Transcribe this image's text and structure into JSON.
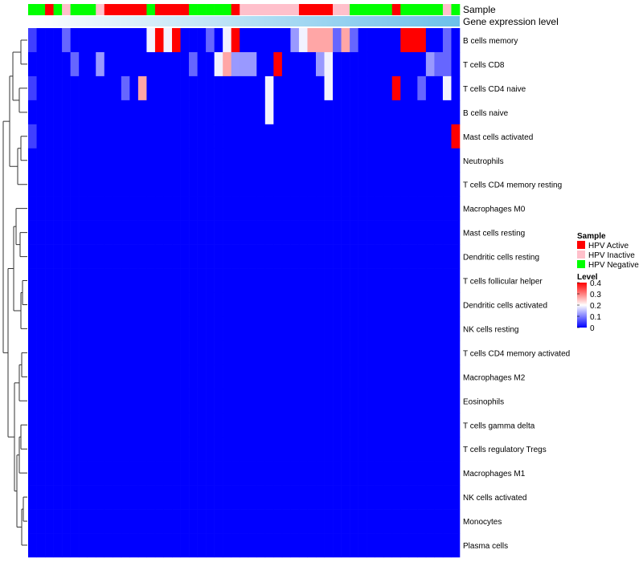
{
  "chart_data": {
    "type": "heatmap",
    "title": "",
    "colorbar": {
      "title": "Level",
      "min": 0,
      "max": 0.4,
      "ticks": [
        "0.4",
        "0.3",
        "0.2",
        "0.1",
        "0"
      ],
      "colors": [
        "#0000ff",
        "#ffffff",
        "#ff0000"
      ]
    },
    "annotation_tracks": [
      {
        "name": "Sample",
        "classes": [
          "HPV Active",
          "HPV Inactive",
          "HPV Negative"
        ],
        "colors": {
          "HPV Active": "#ff0000",
          "HPV Inactive": "#ffc0cb",
          "HPV Negative": "#00ff00"
        },
        "values": [
          "HPV Negative",
          "HPV Negative",
          "HPV Active",
          "HPV Negative",
          "HPV Inactive",
          "HPV Negative",
          "HPV Negative",
          "HPV Negative",
          "HPV Inactive",
          "HPV Active",
          "HPV Active",
          "HPV Active",
          "HPV Active",
          "HPV Active",
          "HPV Negative",
          "HPV Active",
          "HPV Active",
          "HPV Active",
          "HPV Active",
          "HPV Negative",
          "HPV Negative",
          "HPV Negative",
          "HPV Negative",
          "HPV Negative",
          "HPV Active",
          "HPV Inactive",
          "HPV Inactive",
          "HPV Inactive",
          "HPV Inactive",
          "HPV Inactive",
          "HPV Inactive",
          "HPV Inactive",
          "HPV Active",
          "HPV Active",
          "HPV Active",
          "HPV Active",
          "HPV Inactive",
          "HPV Inactive",
          "HPV Negative",
          "HPV Negative",
          "HPV Negative",
          "HPV Negative",
          "HPV Negative",
          "HPV Active",
          "HPV Negative",
          "HPV Negative",
          "HPV Negative",
          "HPV Negative",
          "HPV Negative",
          "HPV Inactive",
          "HPV Negative"
        ]
      },
      {
        "name": "Gene expression level",
        "color_start": "#ffffff",
        "color_end": "#6cc0ea"
      }
    ],
    "legend": {
      "title": "Sample",
      "entries": [
        "HPV Active",
        "HPV Inactive",
        "HPV Negative"
      ]
    },
    "rows": [
      "B cells memory",
      "T cells CD8",
      "T cells CD4 naive",
      "B cells naive",
      "Mast cells activated",
      "Neutrophils",
      "T cells CD4 memory resting",
      "Macrophages M0",
      "Mast cells resting",
      "Dendritic cells resting",
      "T cells follicular helper",
      "Dendritic cells activated",
      "NK cells resting",
      "T cells CD4 memory activated",
      "Macrophages M2",
      "Eosinophils",
      "T cells gamma delta",
      "T cells regulatory  Tregs",
      "Macrophages M1",
      "NK cells activated",
      "Monocytes",
      "Plasma cells"
    ],
    "n_columns": 51,
    "values": [
      [
        0.05,
        0.0,
        0.0,
        0.0,
        0.08,
        0.0,
        0.0,
        0.0,
        0.0,
        0.0,
        0.0,
        0.0,
        0.0,
        0.0,
        0.19,
        0.4,
        0.19,
        0.4,
        0.0,
        0.0,
        0.0,
        0.08,
        0.0,
        0.19,
        0.4,
        0.0,
        0.0,
        0.0,
        0.0,
        0.0,
        0.0,
        0.12,
        0.19,
        0.27,
        0.27,
        0.27,
        0.08,
        0.27,
        0.08,
        0.0,
        0.0,
        0.0,
        0.0,
        0.0,
        0.4,
        0.4,
        0.4,
        0.0,
        0.0,
        0.08,
        0.0
      ],
      [
        0.0,
        0.0,
        0.0,
        0.0,
        0.0,
        0.08,
        0.0,
        0.0,
        0.12,
        0.0,
        0.0,
        0.0,
        0.0,
        0.0,
        0.0,
        0.0,
        0.0,
        0.0,
        0.0,
        0.08,
        0.0,
        0.0,
        0.19,
        0.27,
        0.12,
        0.12,
        0.12,
        0.0,
        0.0,
        0.4,
        0.0,
        0.0,
        0.0,
        0.0,
        0.12,
        0.19,
        0.0,
        0.0,
        0.0,
        0.0,
        0.0,
        0.0,
        0.0,
        0.0,
        0.0,
        0.0,
        0.0,
        0.12,
        0.08,
        0.08,
        0.0
      ],
      [
        0.05,
        0.0,
        0.0,
        0.0,
        0.0,
        0.0,
        0.0,
        0.0,
        0.0,
        0.0,
        0.0,
        0.08,
        0.0,
        0.27,
        0.0,
        0.0,
        0.0,
        0.0,
        0.0,
        0.0,
        0.0,
        0.0,
        0.0,
        0.0,
        0.0,
        0.0,
        0.0,
        0.0,
        0.19,
        0.0,
        0.0,
        0.0,
        0.0,
        0.0,
        0.0,
        0.19,
        0.0,
        0.0,
        0.0,
        0.0,
        0.0,
        0.0,
        0.0,
        0.4,
        0.0,
        0.0,
        0.08,
        0.0,
        0.0,
        0.19,
        0.0
      ],
      [
        0.0,
        0.0,
        0.0,
        0.0,
        0.0,
        0.0,
        0.0,
        0.0,
        0.0,
        0.0,
        0.0,
        0.0,
        0.0,
        0.0,
        0.0,
        0.0,
        0.0,
        0.0,
        0.0,
        0.0,
        0.0,
        0.0,
        0.0,
        0.0,
        0.0,
        0.0,
        0.0,
        0.0,
        0.19,
        0.0,
        0.0,
        0.0,
        0.0,
        0.0,
        0.0,
        0.0,
        0.0,
        0.0,
        0.0,
        0.0,
        0.0,
        0.0,
        0.0,
        0.0,
        0.0,
        0.0,
        0.0,
        0.0,
        0.0,
        0.0,
        0.0
      ],
      [
        0.05,
        0.0,
        0.0,
        0.0,
        0.0,
        0.0,
        0.0,
        0.0,
        0.0,
        0.0,
        0.0,
        0.0,
        0.0,
        0.0,
        0.0,
        0.0,
        0.0,
        0.0,
        0.0,
        0.0,
        0.0,
        0.0,
        0.0,
        0.0,
        0.0,
        0.0,
        0.0,
        0.0,
        0.0,
        0.0,
        0.0,
        0.0,
        0.0,
        0.0,
        0.0,
        0.0,
        0.0,
        0.0,
        0.0,
        0.0,
        0.0,
        0.0,
        0.0,
        0.0,
        0.0,
        0.0,
        0.0,
        0.0,
        0.0,
        0.0,
        0.4
      ],
      [
        0.0,
        0.0,
        0.0,
        0.0,
        0.0,
        0.0,
        0.0,
        0.0,
        0.0,
        0.0,
        0.0,
        0.0,
        0.0,
        0.0,
        0.0,
        0.0,
        0.0,
        0.0,
        0.0,
        0.0,
        0.0,
        0.0,
        0.0,
        0.0,
        0.0,
        0.0,
        0.0,
        0.0,
        0.0,
        0.0,
        0.0,
        0.0,
        0.0,
        0.0,
        0.0,
        0.0,
        0.0,
        0.0,
        0.0,
        0.0,
        0.0,
        0.0,
        0.0,
        0.0,
        0.0,
        0.0,
        0.0,
        0.0,
        0.0,
        0.0,
        0.0
      ],
      [
        0.0,
        0.0,
        0.0,
        0.0,
        0.0,
        0.0,
        0.0,
        0.0,
        0.0,
        0.0,
        0.0,
        0.0,
        0.0,
        0.0,
        0.0,
        0.0,
        0.0,
        0.0,
        0.0,
        0.0,
        0.0,
        0.0,
        0.0,
        0.0,
        0.0,
        0.0,
        0.0,
        0.0,
        0.0,
        0.0,
        0.0,
        0.0,
        0.0,
        0.0,
        0.0,
        0.0,
        0.0,
        0.0,
        0.0,
        0.0,
        0.0,
        0.0,
        0.0,
        0.0,
        0.0,
        0.0,
        0.0,
        0.0,
        0.0,
        0.0,
        0.0
      ],
      [
        0.0,
        0.0,
        0.0,
        0.0,
        0.0,
        0.0,
        0.0,
        0.0,
        0.0,
        0.0,
        0.0,
        0.0,
        0.0,
        0.0,
        0.0,
        0.0,
        0.0,
        0.0,
        0.0,
        0.0,
        0.0,
        0.0,
        0.0,
        0.0,
        0.0,
        0.0,
        0.0,
        0.0,
        0.0,
        0.0,
        0.0,
        0.0,
        0.0,
        0.0,
        0.0,
        0.0,
        0.0,
        0.0,
        0.0,
        0.0,
        0.0,
        0.0,
        0.0,
        0.0,
        0.0,
        0.0,
        0.0,
        0.0,
        0.0,
        0.0,
        0.0
      ],
      [
        0.0,
        0.0,
        0.0,
        0.0,
        0.0,
        0.0,
        0.0,
        0.0,
        0.0,
        0.0,
        0.0,
        0.0,
        0.0,
        0.0,
        0.0,
        0.0,
        0.0,
        0.0,
        0.0,
        0.0,
        0.0,
        0.0,
        0.0,
        0.0,
        0.0,
        0.0,
        0.0,
        0.0,
        0.0,
        0.0,
        0.0,
        0.0,
        0.0,
        0.0,
        0.0,
        0.0,
        0.0,
        0.0,
        0.0,
        0.0,
        0.0,
        0.0,
        0.0,
        0.0,
        0.0,
        0.0,
        0.0,
        0.0,
        0.0,
        0.0,
        0.0
      ],
      [
        0.0,
        0.0,
        0.0,
        0.0,
        0.0,
        0.0,
        0.0,
        0.0,
        0.0,
        0.0,
        0.0,
        0.0,
        0.0,
        0.0,
        0.0,
        0.0,
        0.0,
        0.0,
        0.0,
        0.0,
        0.0,
        0.0,
        0.0,
        0.0,
        0.0,
        0.0,
        0.0,
        0.0,
        0.0,
        0.0,
        0.0,
        0.0,
        0.0,
        0.0,
        0.0,
        0.0,
        0.0,
        0.0,
        0.0,
        0.0,
        0.0,
        0.0,
        0.0,
        0.0,
        0.0,
        0.0,
        0.0,
        0.0,
        0.0,
        0.0,
        0.0
      ],
      [
        0.0,
        0.0,
        0.0,
        0.0,
        0.0,
        0.0,
        0.0,
        0.0,
        0.0,
        0.0,
        0.0,
        0.0,
        0.0,
        0.0,
        0.0,
        0.0,
        0.0,
        0.0,
        0.0,
        0.0,
        0.0,
        0.0,
        0.0,
        0.0,
        0.0,
        0.0,
        0.0,
        0.0,
        0.0,
        0.0,
        0.0,
        0.0,
        0.0,
        0.0,
        0.0,
        0.0,
        0.0,
        0.0,
        0.0,
        0.0,
        0.0,
        0.0,
        0.0,
        0.0,
        0.0,
        0.0,
        0.0,
        0.0,
        0.0,
        0.0,
        0.0
      ],
      [
        0.0,
        0.0,
        0.0,
        0.0,
        0.0,
        0.0,
        0.0,
        0.0,
        0.0,
        0.0,
        0.0,
        0.0,
        0.0,
        0.0,
        0.0,
        0.0,
        0.0,
        0.0,
        0.0,
        0.0,
        0.0,
        0.0,
        0.0,
        0.0,
        0.0,
        0.0,
        0.0,
        0.0,
        0.0,
        0.0,
        0.0,
        0.0,
        0.0,
        0.0,
        0.0,
        0.0,
        0.0,
        0.0,
        0.0,
        0.0,
        0.0,
        0.0,
        0.0,
        0.0,
        0.0,
        0.0,
        0.0,
        0.0,
        0.0,
        0.0,
        0.0
      ],
      [
        0.0,
        0.0,
        0.0,
        0.0,
        0.0,
        0.0,
        0.0,
        0.0,
        0.0,
        0.0,
        0.0,
        0.0,
        0.0,
        0.0,
        0.0,
        0.0,
        0.0,
        0.0,
        0.0,
        0.0,
        0.0,
        0.0,
        0.0,
        0.0,
        0.0,
        0.0,
        0.0,
        0.0,
        0.0,
        0.0,
        0.0,
        0.0,
        0.0,
        0.0,
        0.0,
        0.0,
        0.0,
        0.0,
        0.0,
        0.0,
        0.0,
        0.0,
        0.0,
        0.0,
        0.0,
        0.0,
        0.0,
        0.0,
        0.0,
        0.0,
        0.0
      ],
      [
        0.0,
        0.0,
        0.0,
        0.0,
        0.0,
        0.0,
        0.0,
        0.0,
        0.0,
        0.0,
        0.0,
        0.0,
        0.0,
        0.0,
        0.0,
        0.0,
        0.0,
        0.0,
        0.0,
        0.0,
        0.0,
        0.0,
        0.0,
        0.0,
        0.0,
        0.0,
        0.0,
        0.0,
        0.0,
        0.0,
        0.0,
        0.0,
        0.0,
        0.0,
        0.0,
        0.0,
        0.0,
        0.0,
        0.0,
        0.0,
        0.0,
        0.0,
        0.0,
        0.0,
        0.0,
        0.0,
        0.0,
        0.0,
        0.0,
        0.0,
        0.0
      ],
      [
        0.0,
        0.0,
        0.0,
        0.0,
        0.0,
        0.0,
        0.0,
        0.0,
        0.0,
        0.0,
        0.0,
        0.0,
        0.0,
        0.0,
        0.0,
        0.0,
        0.0,
        0.0,
        0.0,
        0.0,
        0.0,
        0.0,
        0.0,
        0.0,
        0.0,
        0.0,
        0.0,
        0.0,
        0.0,
        0.0,
        0.0,
        0.0,
        0.0,
        0.0,
        0.0,
        0.0,
        0.0,
        0.0,
        0.0,
        0.0,
        0.0,
        0.0,
        0.0,
        0.0,
        0.0,
        0.0,
        0.0,
        0.0,
        0.0,
        0.0,
        0.0
      ],
      [
        0.0,
        0.0,
        0.0,
        0.0,
        0.0,
        0.0,
        0.0,
        0.0,
        0.0,
        0.0,
        0.0,
        0.0,
        0.0,
        0.0,
        0.0,
        0.0,
        0.0,
        0.0,
        0.0,
        0.0,
        0.0,
        0.0,
        0.0,
        0.0,
        0.0,
        0.0,
        0.0,
        0.0,
        0.0,
        0.0,
        0.0,
        0.0,
        0.0,
        0.0,
        0.0,
        0.0,
        0.0,
        0.0,
        0.0,
        0.0,
        0.0,
        0.0,
        0.0,
        0.0,
        0.0,
        0.0,
        0.0,
        0.0,
        0.0,
        0.0,
        0.0
      ],
      [
        0.0,
        0.0,
        0.0,
        0.0,
        0.0,
        0.0,
        0.0,
        0.0,
        0.0,
        0.0,
        0.0,
        0.0,
        0.0,
        0.0,
        0.0,
        0.0,
        0.0,
        0.0,
        0.0,
        0.0,
        0.0,
        0.0,
        0.0,
        0.0,
        0.0,
        0.0,
        0.0,
        0.0,
        0.0,
        0.0,
        0.0,
        0.0,
        0.0,
        0.0,
        0.0,
        0.0,
        0.0,
        0.0,
        0.0,
        0.0,
        0.0,
        0.0,
        0.0,
        0.0,
        0.0,
        0.0,
        0.0,
        0.0,
        0.0,
        0.0,
        0.0
      ],
      [
        0.0,
        0.0,
        0.0,
        0.0,
        0.0,
        0.0,
        0.0,
        0.0,
        0.0,
        0.0,
        0.0,
        0.0,
        0.0,
        0.0,
        0.0,
        0.0,
        0.0,
        0.0,
        0.0,
        0.0,
        0.0,
        0.0,
        0.0,
        0.0,
        0.0,
        0.0,
        0.0,
        0.0,
        0.0,
        0.0,
        0.0,
        0.0,
        0.0,
        0.0,
        0.0,
        0.0,
        0.0,
        0.0,
        0.0,
        0.0,
        0.0,
        0.0,
        0.0,
        0.0,
        0.0,
        0.0,
        0.0,
        0.0,
        0.0,
        0.0,
        0.0
      ],
      [
        0.0,
        0.0,
        0.0,
        0.0,
        0.0,
        0.0,
        0.0,
        0.0,
        0.0,
        0.0,
        0.0,
        0.0,
        0.0,
        0.0,
        0.0,
        0.0,
        0.0,
        0.0,
        0.0,
        0.0,
        0.0,
        0.0,
        0.0,
        0.0,
        0.0,
        0.0,
        0.0,
        0.0,
        0.0,
        0.0,
        0.0,
        0.0,
        0.0,
        0.0,
        0.0,
        0.0,
        0.0,
        0.0,
        0.0,
        0.0,
        0.0,
        0.0,
        0.0,
        0.0,
        0.0,
        0.0,
        0.0,
        0.0,
        0.0,
        0.0,
        0.0
      ],
      [
        0.0,
        0.0,
        0.0,
        0.0,
        0.0,
        0.0,
        0.0,
        0.0,
        0.0,
        0.0,
        0.0,
        0.0,
        0.0,
        0.0,
        0.0,
        0.0,
        0.0,
        0.0,
        0.0,
        0.0,
        0.0,
        0.0,
        0.0,
        0.0,
        0.0,
        0.0,
        0.0,
        0.0,
        0.0,
        0.0,
        0.0,
        0.0,
        0.0,
        0.0,
        0.0,
        0.0,
        0.0,
        0.0,
        0.0,
        0.0,
        0.0,
        0.0,
        0.0,
        0.0,
        0.0,
        0.0,
        0.0,
        0.0,
        0.0,
        0.0,
        0.0
      ],
      [
        0.0,
        0.0,
        0.0,
        0.0,
        0.0,
        0.0,
        0.0,
        0.0,
        0.0,
        0.0,
        0.0,
        0.0,
        0.0,
        0.0,
        0.0,
        0.0,
        0.0,
        0.0,
        0.0,
        0.0,
        0.0,
        0.0,
        0.0,
        0.0,
        0.0,
        0.0,
        0.0,
        0.0,
        0.0,
        0.0,
        0.0,
        0.0,
        0.0,
        0.0,
        0.0,
        0.0,
        0.0,
        0.0,
        0.0,
        0.0,
        0.0,
        0.0,
        0.0,
        0.0,
        0.0,
        0.0,
        0.0,
        0.0,
        0.0,
        0.0,
        0.0
      ],
      [
        0.0,
        0.0,
        0.0,
        0.0,
        0.0,
        0.0,
        0.0,
        0.0,
        0.0,
        0.0,
        0.0,
        0.0,
        0.0,
        0.0,
        0.0,
        0.0,
        0.0,
        0.0,
        0.0,
        0.0,
        0.0,
        0.0,
        0.0,
        0.0,
        0.0,
        0.0,
        0.0,
        0.0,
        0.0,
        0.0,
        0.0,
        0.0,
        0.0,
        0.0,
        0.0,
        0.0,
        0.0,
        0.0,
        0.0,
        0.0,
        0.0,
        0.0,
        0.0,
        0.0,
        0.0,
        0.0,
        0.0,
        0.0,
        0.0,
        0.0,
        0.0
      ]
    ]
  }
}
